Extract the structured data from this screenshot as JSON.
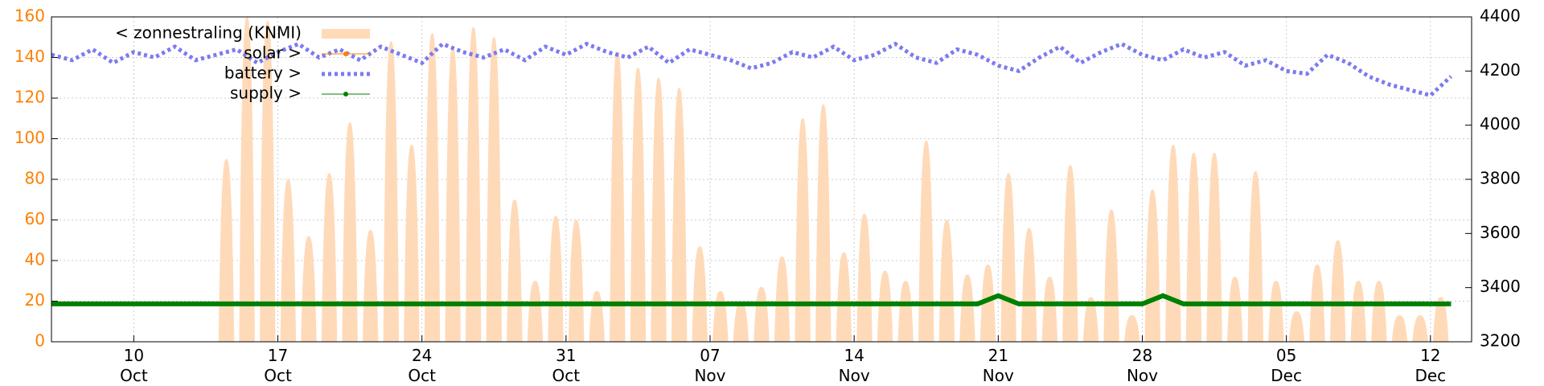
{
  "chart_data": {
    "type": "line",
    "x": [
      "10-06",
      "10-07",
      "10-08",
      "10-09",
      "10-10",
      "10-11",
      "10-12",
      "10-13",
      "10-14",
      "10-15",
      "10-16",
      "10-17",
      "10-18",
      "10-19",
      "10-20",
      "10-21",
      "10-22",
      "10-23",
      "10-24",
      "10-25",
      "10-26",
      "10-27",
      "10-28",
      "10-29",
      "10-30",
      "10-31",
      "11-01",
      "11-02",
      "11-03",
      "11-04",
      "11-05",
      "11-06",
      "11-07",
      "11-08",
      "11-09",
      "11-10",
      "11-11",
      "11-12",
      "11-13",
      "11-14",
      "11-15",
      "11-16",
      "11-17",
      "11-18",
      "11-19",
      "11-20",
      "11-21",
      "11-22",
      "11-23",
      "11-24",
      "11-25",
      "11-26",
      "11-27",
      "11-28",
      "11-29",
      "11-30",
      "12-01",
      "12-02",
      "12-03",
      "12-04",
      "12-05",
      "12-06",
      "12-07",
      "12-08",
      "12-09",
      "12-10",
      "12-11",
      "12-12",
      "12-13"
    ],
    "series": [
      {
        "name": "< zonnestraling (KNMI)",
        "color": "#ffdab9",
        "style": "area",
        "values": [
          null,
          null,
          null,
          null,
          null,
          null,
          null,
          null,
          90,
          160,
          158,
          80,
          52,
          83,
          108,
          55,
          148,
          97,
          152,
          145,
          155,
          150,
          70,
          30,
          62,
          60,
          25,
          143,
          135,
          130,
          125,
          47,
          25,
          20,
          27,
          42,
          110,
          117,
          44,
          63,
          35,
          30,
          99,
          60,
          33,
          38,
          83,
          56,
          32,
          87,
          22,
          65,
          13,
          75,
          97,
          93,
          93,
          32,
          84,
          30,
          15,
          38,
          50,
          30,
          30,
          13,
          13,
          22,
          null
        ]
      },
      {
        "name": "solar >",
        "color": "#ff7f00",
        "style": "line",
        "axis": "y2"
      },
      {
        "name": "battery >",
        "color": "#7b7bf0",
        "style": "dots",
        "axis": "y2",
        "values": [
          4260,
          4240,
          4280,
          4230,
          4270,
          4250,
          4290,
          4240,
          4260,
          4280,
          4230,
          4270,
          4300,
          4250,
          4280,
          4240,
          4290,
          4260,
          4230,
          4300,
          4270,
          4250,
          4280,
          4240,
          4290,
          4260,
          4300,
          4270,
          4250,
          4290,
          4230,
          4280,
          4260,
          4240,
          4210,
          4230,
          4270,
          4250,
          4290,
          4240,
          4260,
          4300,
          4250,
          4230,
          4280,
          4260,
          4220,
          4200,
          4250,
          4290,
          4230,
          4270,
          4300,
          4260,
          4240,
          4280,
          4250,
          4270,
          4220,
          4240,
          4200,
          4190,
          4260,
          4230,
          4180,
          4150,
          4130,
          4110,
          4180
        ]
      },
      {
        "name": "supply >",
        "color": "#008000",
        "style": "line",
        "axis": "y2",
        "values": [
          3340,
          3340,
          3340,
          3340,
          3340,
          3340,
          3340,
          3340,
          3340,
          3340,
          3340,
          3340,
          3340,
          3340,
          3340,
          3340,
          3340,
          3340,
          3340,
          3340,
          3340,
          3340,
          3340,
          3340,
          3340,
          3340,
          3340,
          3340,
          3340,
          3340,
          3340,
          3340,
          3340,
          3340,
          3340,
          3340,
          3340,
          3340,
          3340,
          3340,
          3340,
          3340,
          3340,
          3340,
          3340,
          3340,
          3370,
          3340,
          3340,
          3340,
          3340,
          3340,
          3340,
          3340,
          3370,
          3340,
          3340,
          3340,
          3340,
          3340,
          3340,
          3340,
          3340,
          3340,
          3340,
          3340,
          3340,
          3340,
          3340
        ]
      }
    ],
    "xlim": [
      "10-06",
      "12-14"
    ],
    "xticks": [
      {
        "value": "10-10",
        "label": "10\nOct"
      },
      {
        "value": "10-17",
        "label": "17\nOct"
      },
      {
        "value": "10-24",
        "label": "24\nOct"
      },
      {
        "value": "10-31",
        "label": "31\nOct"
      },
      {
        "value": "11-07",
        "label": "07\nNov"
      },
      {
        "value": "11-14",
        "label": "14\nNov"
      },
      {
        "value": "11-21",
        "label": "21\nNov"
      },
      {
        "value": "11-28",
        "label": "28\nNov"
      },
      {
        "value": "12-05",
        "label": "05\nDec"
      },
      {
        "value": "12-12",
        "label": "12\nDec"
      }
    ],
    "ylim": [
      0,
      160
    ],
    "yticks": [
      0,
      20,
      40,
      60,
      80,
      100,
      120,
      140,
      160
    ],
    "y2lim": [
      3200,
      4400
    ],
    "y2ticks": [
      3200,
      3400,
      3600,
      3800,
      4000,
      4200,
      4400
    ],
    "grid": true,
    "legend": "top-left"
  }
}
